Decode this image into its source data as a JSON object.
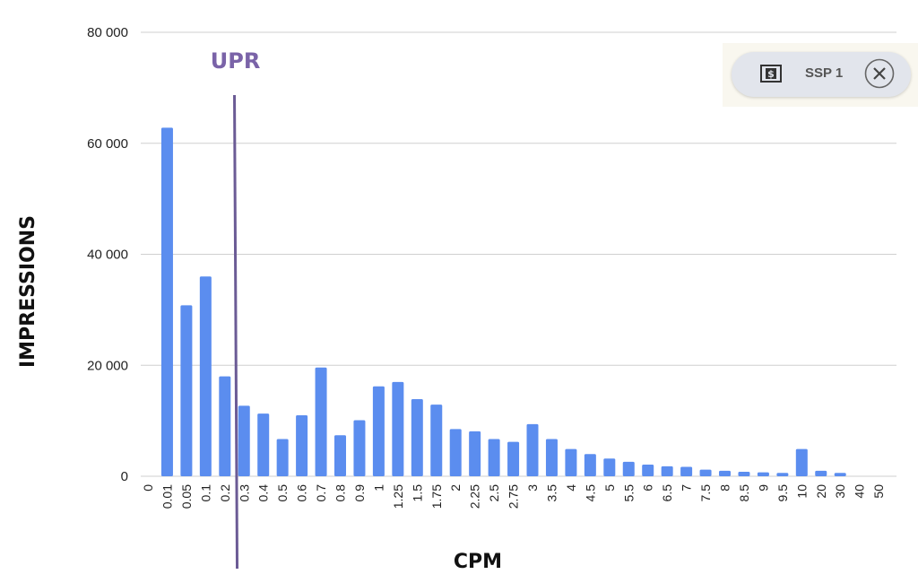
{
  "chart_data": {
    "type": "bar",
    "xlabel": "CPM",
    "ylabel": "IMPRESSIONS",
    "ylim": [
      0,
      80000
    ],
    "yticks": [
      0,
      20000,
      40000,
      60000,
      80000
    ],
    "ytick_labels": [
      "0",
      "20 000",
      "40 000",
      "60 000",
      "80 000"
    ],
    "grid": true,
    "categories": [
      "0",
      "0.01",
      "0.05",
      "0.1",
      "0.2",
      "0.3",
      "0.4",
      "0.5",
      "0.6",
      "0.7",
      "0.8",
      "0.9",
      "1",
      "1.25",
      "1.5",
      "1.75",
      "2",
      "2.25",
      "2.5",
      "2.75",
      "3",
      "3.5",
      "4",
      "4.5",
      "5",
      "5.5",
      "6",
      "6.5",
      "7",
      "7.5",
      "8",
      "8.5",
      "9",
      "9.5",
      "10",
      "20",
      "30",
      "40",
      "50"
    ],
    "values": [
      0,
      62800,
      30800,
      36000,
      18000,
      12700,
      11300,
      6700,
      11000,
      19600,
      7400,
      10100,
      16200,
      17000,
      13900,
      12900,
      8500,
      8100,
      6700,
      6200,
      9400,
      6700,
      4900,
      4000,
      3200,
      2600,
      2100,
      1800,
      1700,
      1200,
      1000,
      800,
      700,
      600,
      4900,
      1000,
      600,
      0,
      0
    ],
    "colors": {
      "bar": "#5b8def",
      "reference": "#6b5b95",
      "reference_label": "#7a63a8"
    },
    "reference_line": {
      "label": "UPR",
      "between": [
        "0.2",
        "0.3"
      ]
    }
  },
  "filter": {
    "chip_label": "SSP 1",
    "chip_icon": "dollar-bill-icon",
    "close_icon": "close-icon"
  }
}
